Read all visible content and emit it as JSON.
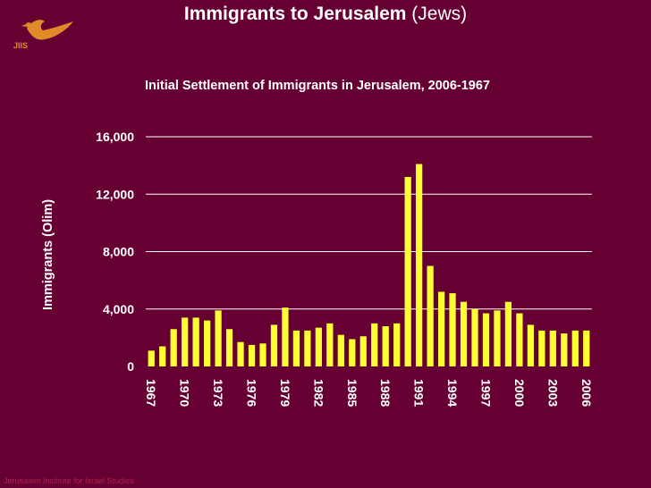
{
  "slide": {
    "title_bold": "Immigrants to Jerusalem",
    "title_rest": "(Jews)",
    "logo_text": "JIIS",
    "footer": "Jerusalem Institute for Israel Studies"
  },
  "colors": {
    "background": "#660033",
    "bar": "#ffff33",
    "text": "#ffffff",
    "gridline": "#ffffff",
    "logo": "#e08a2a"
  },
  "chart_data": {
    "type": "bar",
    "title": "Initial Settlement of Immigrants in Jerusalem, 2006-1967",
    "xlabel": "",
    "ylabel": "Immigrants (Olim)",
    "ylim": [
      0,
      16000
    ],
    "yticks": [
      0,
      4000,
      8000,
      12000,
      16000
    ],
    "ytick_labels": [
      "0",
      "4,000",
      "8,000",
      "12,000",
      "16,000"
    ],
    "xtick_labels": [
      "1967",
      "1970",
      "1973",
      "1976",
      "1979",
      "1982",
      "1985",
      "1988",
      "1991",
      "1994",
      "1997",
      "2000",
      "2003",
      "2006"
    ],
    "grid": true,
    "categories": [
      "1967",
      "1968",
      "1969",
      "1970",
      "1971",
      "1972",
      "1973",
      "1974",
      "1975",
      "1976",
      "1977",
      "1978",
      "1979",
      "1980",
      "1981",
      "1982",
      "1983",
      "1984",
      "1985",
      "1986",
      "1987",
      "1988",
      "1989",
      "1990",
      "1991",
      "1992",
      "1993",
      "1994",
      "1995",
      "1996",
      "1997",
      "1998",
      "1999",
      "2000",
      "2001",
      "2002",
      "2003",
      "2004",
      "2005",
      "2006"
    ],
    "values": [
      1100,
      1400,
      2600,
      3400,
      3400,
      3200,
      3900,
      2600,
      1700,
      1500,
      1600,
      2900,
      4100,
      2500,
      2500,
      2700,
      3000,
      2200,
      1900,
      2100,
      3000,
      2800,
      3000,
      13200,
      14100,
      7000,
      5200,
      5100,
      4500,
      4000,
      3700,
      3900,
      4500,
      3700,
      2900,
      2500,
      2500,
      2300,
      2500,
      2500
    ]
  }
}
